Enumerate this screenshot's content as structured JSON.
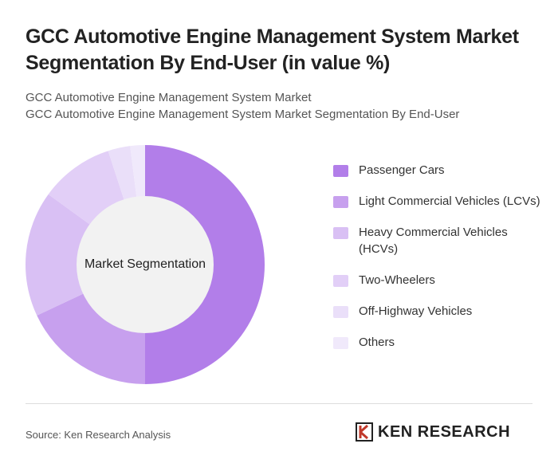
{
  "chart_data": {
    "type": "donut",
    "title": "GCC Automotive Engine Management System Market Segmentation By End-User (in value %)",
    "subtitle": [
      "GCC Automotive Engine Management System Market",
      "GCC Automotive Engine Management System Market Segmentation By End-User"
    ],
    "center_label": "Market Segmentation",
    "categories": [
      "Passenger Cars",
      "Light Commercial Vehicles (LCVs)",
      "Heavy Commercial Vehicles (HCVs)",
      "Two-Wheelers",
      "Off-Highway Vehicles",
      "Others"
    ],
    "values": [
      50,
      18,
      17,
      10,
      3,
      2
    ],
    "colors": [
      "#b27ee9",
      "#c7a0ee",
      "#d9c0f4",
      "#e2cff7",
      "#eadff9",
      "#f0e9fb"
    ]
  },
  "footer": {
    "source": "Source: Ken Research Analysis",
    "logo": "KEN RESEARCH"
  }
}
